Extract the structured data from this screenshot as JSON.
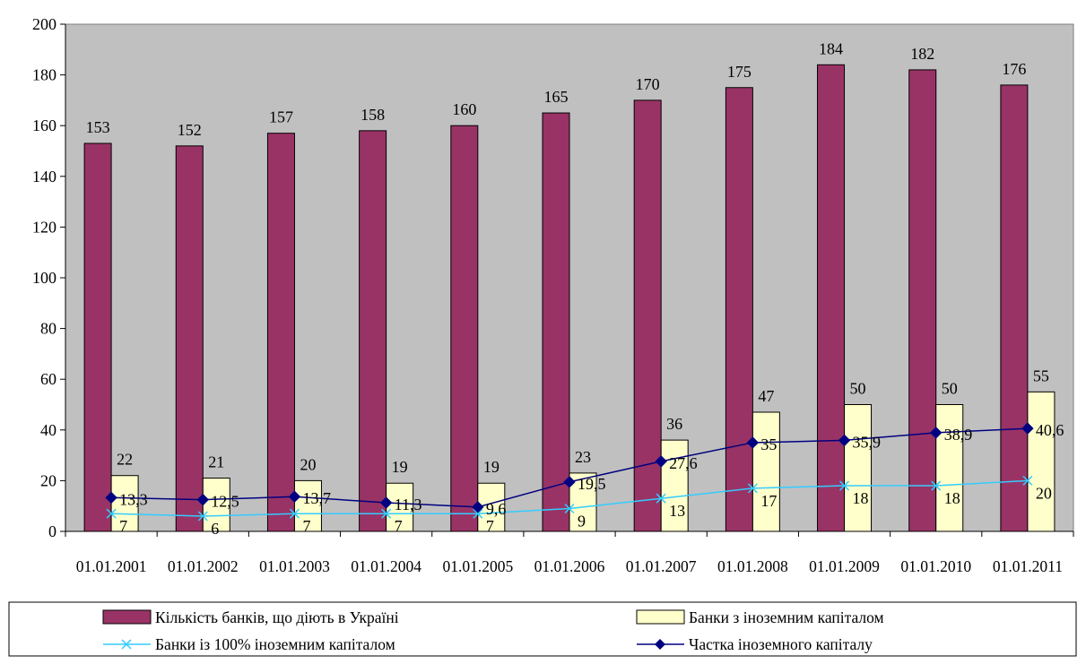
{
  "chart_data": {
    "type": "bar",
    "title": "",
    "xlabel": "",
    "ylabel": "",
    "ylim": [
      0,
      200
    ],
    "yticks": [
      0,
      20,
      40,
      60,
      80,
      100,
      120,
      140,
      160,
      180,
      200
    ],
    "grid": false,
    "legend_position": "bottom",
    "plot_background": "#c0c0c0",
    "categories": [
      "01.01.2001",
      "01.01.2002",
      "01.01.2003",
      "01.01.2004",
      "01.01.2005",
      "01.01.2006",
      "01.01.2007",
      "01.01.2008",
      "01.01.2009",
      "01.01.2010",
      "01.01.2011"
    ],
    "series": [
      {
        "name": "Кількість банків, що діють в Україні",
        "kind": "bar",
        "color": "#993366",
        "values": [
          153,
          152,
          157,
          158,
          160,
          165,
          170,
          175,
          184,
          182,
          176
        ],
        "labels": [
          "153",
          "152",
          "157",
          "158",
          "160",
          "165",
          "170",
          "175",
          "184",
          "182",
          "176"
        ]
      },
      {
        "name": "Банки з іноземним капіталом",
        "kind": "bar",
        "color": "#ffffcc",
        "values": [
          22,
          21,
          20,
          19,
          19,
          23,
          36,
          47,
          50,
          50,
          55
        ],
        "labels": [
          "22",
          "21",
          "20",
          "19",
          "19",
          "23",
          "36",
          "47",
          "50",
          "50",
          "55"
        ]
      },
      {
        "name": "Банки із 100% іноземним капіталом",
        "kind": "line",
        "marker": "x",
        "color": "#33ccff",
        "values": [
          7,
          6,
          7,
          7,
          7,
          9,
          13,
          17,
          18,
          18,
          20
        ],
        "labels": [
          "7",
          "6",
          "7",
          "7",
          "7",
          "9",
          "13",
          "17",
          "18",
          "18",
          "20"
        ]
      },
      {
        "name": "Частка іноземного капіталу",
        "kind": "line",
        "marker": "diamond",
        "color": "#000080",
        "values": [
          13.3,
          12.5,
          13.7,
          11.3,
          9.6,
          19.5,
          27.6,
          35,
          35.9,
          38.9,
          40.6
        ],
        "labels": [
          "13,3",
          "12,5",
          "13,7",
          "11,3",
          "9,6",
          "19,5",
          "27,6",
          "35",
          "35,9",
          "38,9",
          "40,6"
        ]
      }
    ]
  }
}
